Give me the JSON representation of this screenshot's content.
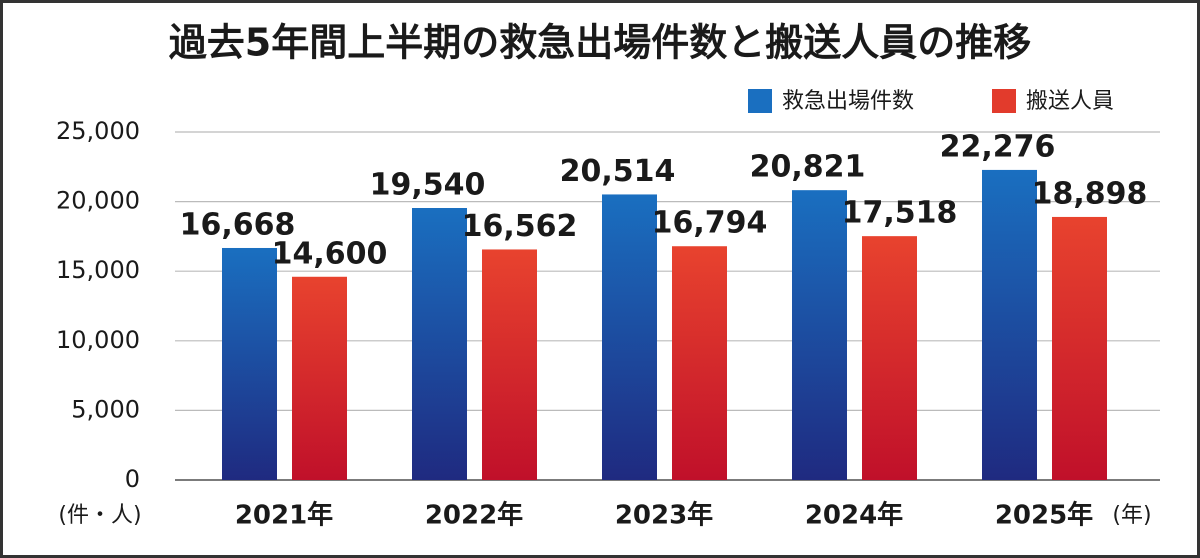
{
  "chart_data": {
    "type": "bar",
    "title": "過去5年間上半期の救急出場件数と搬送人員の推移",
    "y_unit": "(件・人)",
    "x_unit": "(年)",
    "categories": [
      "2021年",
      "2022年",
      "2023年",
      "2024年",
      "2025年"
    ],
    "series": [
      {
        "name": "救急出場件数",
        "color": "#1a6fc0",
        "values": [
          16668,
          19540,
          20514,
          20821,
          22276
        ],
        "value_labels": [
          "16,668",
          "19,540",
          "20,514",
          "20,821",
          "22,276"
        ]
      },
      {
        "name": "搬送人員",
        "color": "#e23b2c",
        "values": [
          14600,
          16562,
          16794,
          17518,
          18898
        ],
        "value_labels": [
          "14,600",
          "16,562",
          "16,794",
          "17,518",
          "18,898"
        ]
      }
    ],
    "ylim": [
      0,
      25000
    ],
    "yticks": [
      0,
      {
        "value": 5000,
        "label": "5,000"
      },
      {
        "value": 10000,
        "label": "10,000"
      },
      {
        "value": 15000,
        "label": "15,000"
      },
      {
        "value": 20000,
        "label": "20,000"
      },
      {
        "value": 25000,
        "label": "25,000"
      }
    ],
    "grid": true,
    "legend": "top-right"
  }
}
